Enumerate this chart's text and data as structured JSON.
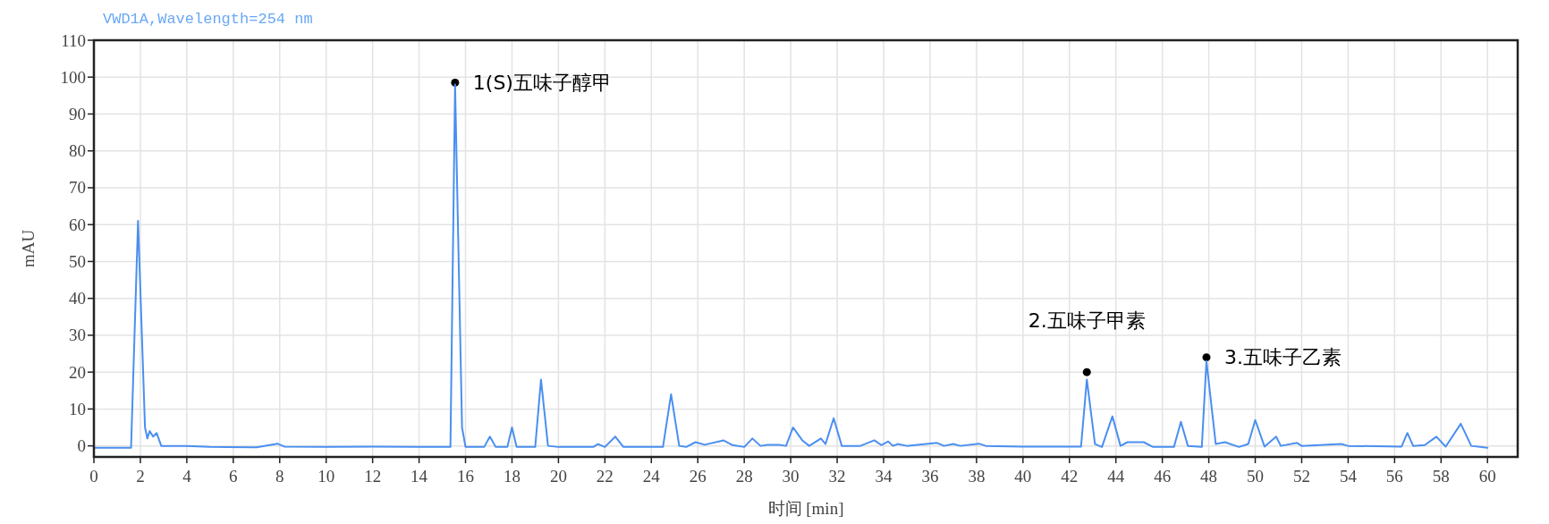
{
  "chart_data": {
    "type": "line",
    "title": "VWD1A,Wavelength=254 nm",
    "xlabel": "时间 [min]",
    "ylabel": "mAU",
    "x": [
      0,
      1.6,
      1.9,
      2.2,
      2.3,
      2.4,
      2.55,
      2.7,
      2.9,
      4,
      5,
      7,
      7.9,
      8.2,
      10,
      12,
      14,
      15.35,
      15.55,
      15.85,
      16,
      16.8,
      17.05,
      17.3,
      17.8,
      18,
      18.2,
      19,
      19.25,
      19.55,
      20,
      21.5,
      21.7,
      22,
      22.45,
      22.8,
      24.5,
      24.85,
      25.2,
      25.5,
      25.9,
      26.3,
      27.1,
      27.5,
      28,
      28.35,
      28.7,
      29,
      29.5,
      29.8,
      30.1,
      30.5,
      30.8,
      31.3,
      31.5,
      31.85,
      32.2,
      33,
      33.6,
      33.9,
      34.2,
      34.4,
      34.6,
      35,
      36.3,
      36.6,
      37,
      37.3,
      38.1,
      38.4,
      40,
      42.5,
      42.75,
      43.1,
      43.4,
      43.85,
      44.2,
      44.5,
      45.2,
      45.6,
      46.5,
      46.8,
      47.1,
      47.7,
      47.9,
      48.3,
      48.7,
      49.3,
      49.7,
      50,
      50.4,
      50.9,
      51.1,
      51.8,
      52,
      53.7,
      54,
      56.3,
      56.55,
      56.8,
      57.3,
      57.8,
      58.2,
      58.85,
      59.3,
      60
    ],
    "series": [
      {
        "color": "#4a8ff0",
        "values": [
          -0.5,
          -0.5,
          61,
          5,
          2,
          4,
          2.5,
          3.5,
          0,
          0,
          -0.3,
          -0.4,
          0.6,
          -0.2,
          -0.3,
          -0.2,
          -0.3,
          -0.3,
          98,
          5,
          -0.3,
          -0.3,
          2.5,
          -0.3,
          -0.3,
          5,
          -0.3,
          -0.3,
          18,
          0,
          -0.3,
          -0.3,
          0.5,
          -0.3,
          2.5,
          -0.3,
          -0.3,
          14,
          0,
          -0.3,
          1,
          0.3,
          1.5,
          0.2,
          -0.3,
          2,
          0,
          0.3,
          0.3,
          0,
          5,
          1.5,
          0,
          2,
          0.5,
          7.5,
          0,
          0,
          1.5,
          0.2,
          1.2,
          0,
          0.5,
          0,
          0.8,
          0,
          0.5,
          0,
          0.6,
          0,
          -0.2,
          -0.2,
          18,
          0.5,
          -0.3,
          8,
          0,
          1,
          1,
          -0.3,
          -0.3,
          6.5,
          0,
          -0.3,
          23,
          0.5,
          1,
          -0.3,
          0.5,
          7,
          -0.2,
          2.5,
          0,
          0.8,
          0,
          0.5,
          0,
          -0.2,
          3.5,
          0,
          0.2,
          2.5,
          -0.2,
          6,
          0,
          -0.5
        ]
      }
    ],
    "xlim": [
      0,
      61.3
    ],
    "ylim": [
      -3,
      110
    ],
    "xticks": [
      0,
      2,
      4,
      6,
      8,
      10,
      12,
      14,
      16,
      18,
      20,
      22,
      24,
      26,
      28,
      30,
      32,
      34,
      36,
      38,
      40,
      42,
      44,
      46,
      48,
      50,
      52,
      54,
      56,
      58,
      60
    ],
    "yticks": [
      0,
      10,
      20,
      30,
      40,
      50,
      60,
      70,
      80,
      90,
      100,
      110
    ],
    "grid": true,
    "annotations": [
      {
        "text": "1(S)五味子醇甲",
        "x": 15.55,
        "y": 98.5
      },
      {
        "text": "2.五味子甲素",
        "x": 42.75,
        "y": 20
      },
      {
        "text": "3.五味子乙素",
        "x": 47.9,
        "y": 24
      }
    ]
  }
}
